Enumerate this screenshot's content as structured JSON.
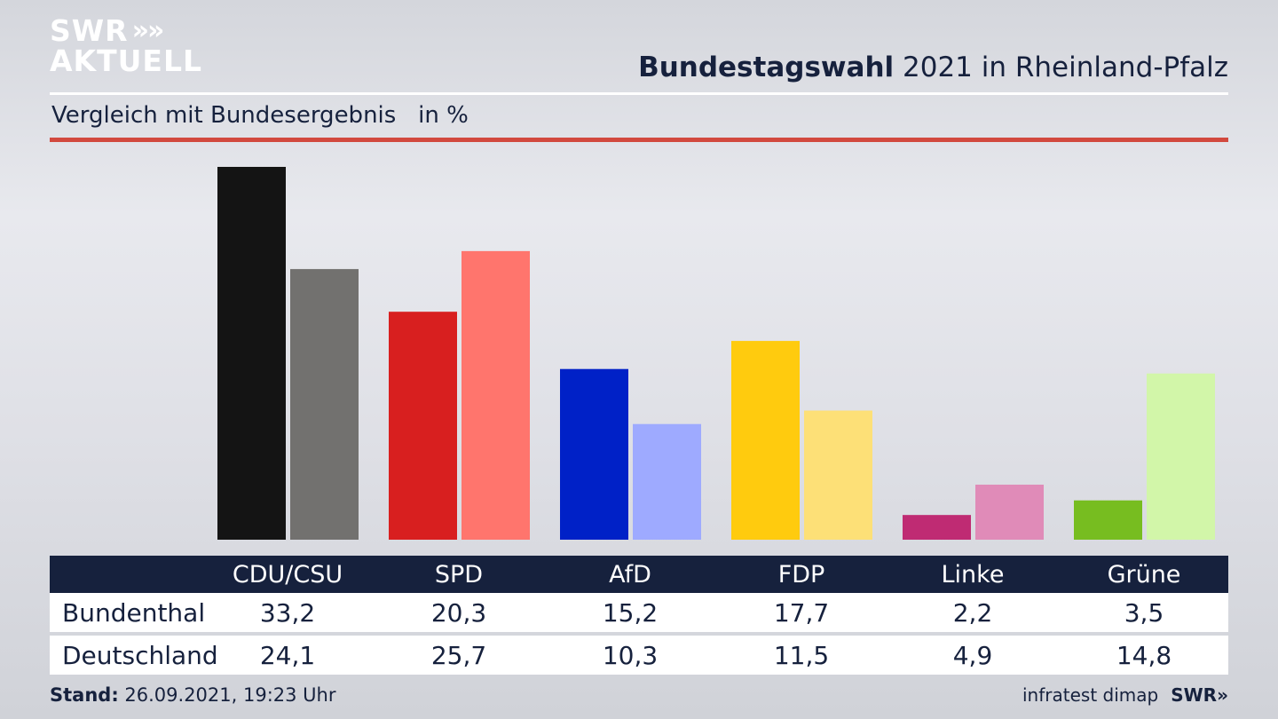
{
  "logo": {
    "line1": "SWR",
    "line2": "AKTUELL",
    "chevrons": "»"
  },
  "title_bold": "Bundestagswahl",
  "title_rest": " 2021 in Rheinland-Pfalz",
  "subtitle": "Vergleich mit Bundesergebnis   in %",
  "footer": {
    "stand_label": "Stand:",
    "stand_value": " 26.09.2021, 19:23 Uhr",
    "source": "infratest dimap",
    "brand": "SWR»"
  },
  "table": {
    "headers": [
      "CDU/CSU",
      "SPD",
      "AfD",
      "FDP",
      "Linke",
      "Grüne"
    ],
    "rows": [
      {
        "label": "Bundenthal",
        "values": [
          "33,2",
          "20,3",
          "15,2",
          "17,7",
          "2,2",
          "3,5"
        ]
      },
      {
        "label": "Deutschland",
        "values": [
          "24,1",
          "25,7",
          "10,3",
          "11,5",
          "4,9",
          "14,8"
        ]
      }
    ]
  },
  "chart_data": {
    "type": "bar",
    "categories": [
      "CDU/CSU",
      "SPD",
      "AfD",
      "FDP",
      "Linke",
      "Grüne"
    ],
    "series": [
      {
        "name": "Bundenthal",
        "values": [
          33.2,
          20.3,
          15.2,
          17.7,
          2.2,
          3.5
        ],
        "colors": [
          "#141414",
          "#d81f1f",
          "#0021c7",
          "#ffcb0e",
          "#bf2b73",
          "#77bd20"
        ]
      },
      {
        "name": "Deutschland",
        "values": [
          24.1,
          25.7,
          10.3,
          11.5,
          4.9,
          14.8
        ],
        "colors": [
          "#72716f",
          "#ff756d",
          "#9eaaff",
          "#fde077",
          "#e08bb8",
          "#d2f6a9"
        ]
      }
    ],
    "ylim": [
      0,
      33.2
    ],
    "grid": false
  }
}
